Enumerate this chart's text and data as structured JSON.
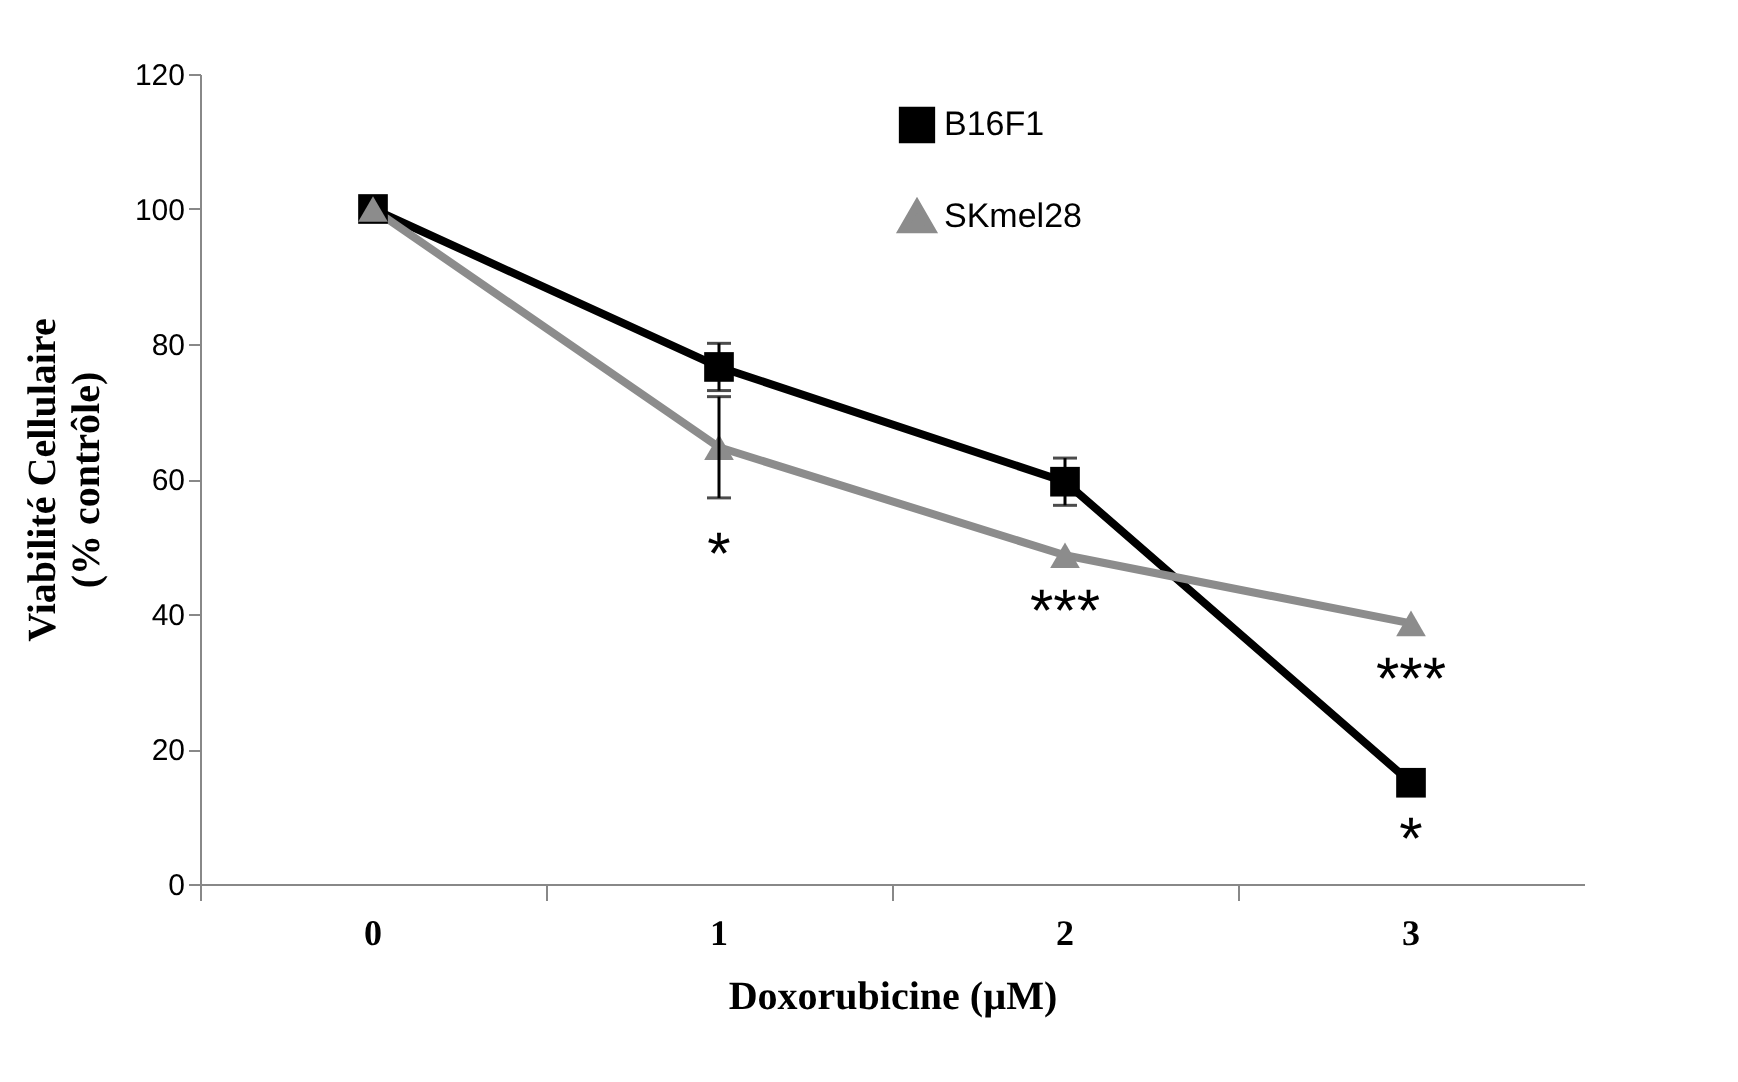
{
  "chart_data": {
    "type": "line",
    "xlabel": "Doxorubicine (µM)",
    "ylabel": "Viabilité  Cellulaire\n(% contrôle)",
    "categories": [
      "0",
      "1",
      "2",
      "3"
    ],
    "series": [
      {
        "name": "B16F1",
        "color": "#000000",
        "marker": "square",
        "values": [
          100,
          76.6,
          59.6,
          15
        ],
        "errors": [
          null,
          3.5,
          3.5,
          null
        ]
      },
      {
        "name": "SKmel28",
        "color": "#8c8c8c",
        "marker": "triangle",
        "values": [
          100,
          64.7,
          48.7,
          38.6
        ],
        "errors": [
          null,
          7.5,
          null,
          null
        ]
      }
    ],
    "ylim": [
      0,
      120
    ],
    "yticks": [
      0,
      20,
      40,
      60,
      80,
      100,
      120
    ],
    "grid": false,
    "legend": "top right",
    "annotations": [
      {
        "text": "*",
        "x": "1",
        "y": 64.7
      },
      {
        "text": "***",
        "x": "2",
        "y": 48.7
      },
      {
        "text": "***",
        "x": "3",
        "y": 38.6
      },
      {
        "text": "*",
        "x": "3",
        "y": 15
      }
    ]
  }
}
